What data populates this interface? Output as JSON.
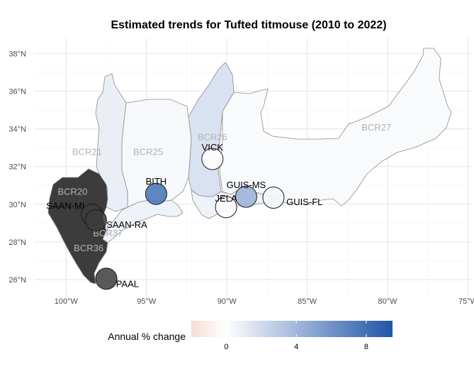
{
  "title": "Estimated trends for Tufted titmouse (2010 to 2022)",
  "map": {
    "lon_range": [
      -102,
      -74.8
    ],
    "lat_range": [
      25.1,
      38.8
    ],
    "x_ticks": [
      {
        "lon": -100,
        "label": "100°W"
      },
      {
        "lon": -95,
        "label": "95°W"
      },
      {
        "lon": -90,
        "label": "90°W"
      },
      {
        "lon": -85,
        "label": "85°W"
      },
      {
        "lon": -80,
        "label": "80°W"
      },
      {
        "lon": -75,
        "label": "75°W"
      }
    ],
    "y_ticks": [
      {
        "lat": 26,
        "label": "26°N"
      },
      {
        "lat": 28,
        "label": "28°N"
      },
      {
        "lat": 30,
        "label": "30°N"
      },
      {
        "lat": 32,
        "label": "32°N"
      },
      {
        "lat": 34,
        "label": "34°N"
      },
      {
        "lat": 36,
        "label": "36°N"
      },
      {
        "lat": 38,
        "label": "38°N"
      }
    ]
  },
  "regions": [
    {
      "name": "BCR21",
      "label_lon": -98.7,
      "label_lat": 32.6,
      "trend": 0.9
    },
    {
      "name": "BCR25",
      "label_lon": -94.9,
      "label_lat": 32.6,
      "trend": 0.4
    },
    {
      "name": "BCR26",
      "label_lon": -90.9,
      "label_lat": 33.4,
      "trend": 1.6
    },
    {
      "name": "BCR27",
      "label_lon": -80.7,
      "label_lat": 33.9,
      "trend": 0.3
    },
    {
      "name": "BCR20",
      "label_lon": -99.6,
      "label_lat": 30.5,
      "trend": null
    },
    {
      "name": "BCR37",
      "label_lon": -97.4,
      "label_lat": 28.3,
      "trend": 0.7
    },
    {
      "name": "BCR36",
      "label_lon": -98.6,
      "label_lat": 27.5,
      "trend": null
    }
  ],
  "sites": [
    {
      "name": "VICK",
      "lon": -90.9,
      "lat": 32.4,
      "trend": 0.0,
      "label_lon": -90.9,
      "label_lat": 33.0,
      "anchor": "middle"
    },
    {
      "name": "BITH",
      "lon": -94.4,
      "lat": 30.55,
      "trend": 7.5,
      "label_lon": -94.4,
      "label_lat": 31.2,
      "anchor": "middle"
    },
    {
      "name": "GUIS-MS",
      "lon": -88.8,
      "lat": 30.4,
      "trend": 4.2,
      "label_lon": -88.8,
      "label_lat": 31.0,
      "anchor": "middle"
    },
    {
      "name": "GUIS-FL",
      "lon": -87.1,
      "lat": 30.35,
      "trend": 0.5,
      "label_lon": -86.3,
      "label_lat": 30.1,
      "anchor": "start"
    },
    {
      "name": "JELA",
      "lon": -90.05,
      "lat": 29.85,
      "trend": 0.1,
      "label_lon": -90.05,
      "label_lat": 30.3,
      "anchor": "middle"
    },
    {
      "name": "SAAN-MI",
      "lon": -98.4,
      "lat": 29.45,
      "trend": null,
      "label_lon": -98.85,
      "label_lat": 29.9,
      "anchor": "end"
    },
    {
      "name": "SAAN-RA",
      "lon": -98.15,
      "lat": 29.15,
      "trend": null,
      "label_lon": -97.5,
      "label_lat": 28.9,
      "anchor": "start"
    },
    {
      "name": "PAAL",
      "lon": -97.5,
      "lat": 26.05,
      "trend": null,
      "label_lon": -96.9,
      "label_lat": 25.75,
      "anchor": "start"
    }
  ],
  "legend": {
    "title": "Annual % change",
    "min": -2,
    "max": 9.5,
    "ticks": [
      {
        "value": 0,
        "label": "0"
      },
      {
        "value": 4,
        "label": "4"
      },
      {
        "value": 8,
        "label": "8"
      }
    ],
    "colors": {
      "negative": "#f7dcd7",
      "zero": "#ffffff",
      "positive": "#1f55a8",
      "missing": "#3c3c3c"
    }
  }
}
